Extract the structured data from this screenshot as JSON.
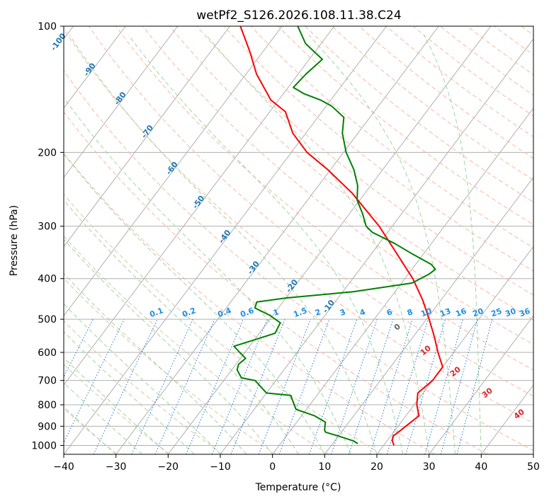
{
  "chart_data": {
    "type": "line",
    "title": "wetPf2_S126.2026.108.11.38.C24",
    "xlabel": "Temperature (°C)",
    "ylabel": "Pressure (hPa)",
    "xlim": [
      -40,
      50
    ],
    "ylim": [
      1050,
      100
    ],
    "y_scale": "log",
    "grid": true,
    "x_ticks": [
      -40,
      -30,
      -20,
      -10,
      0,
      10,
      20,
      30,
      40,
      50
    ],
    "y_ticks": [
      100,
      200,
      300,
      400,
      500,
      600,
      700,
      800,
      900,
      1000
    ],
    "series": [
      {
        "key": "temperature",
        "color": "#ff0000",
        "points": [
          [
            1000,
            22.0
          ],
          [
            975,
            21.0
          ],
          [
            950,
            20.5
          ],
          [
            925,
            21.0
          ],
          [
            900,
            21.5
          ],
          [
            850,
            22.5
          ],
          [
            800,
            20.5
          ],
          [
            750,
            19.0
          ],
          [
            700,
            20.0
          ],
          [
            650,
            20.0
          ],
          [
            600,
            17.0
          ],
          [
            550,
            14.0
          ],
          [
            500,
            10.5
          ],
          [
            450,
            6.5
          ],
          [
            400,
            1.5
          ],
          [
            350,
            -5.0
          ],
          [
            300,
            -12.5
          ],
          [
            250,
            -22.5
          ],
          [
            220,
            -30.5
          ],
          [
            200,
            -37.0
          ],
          [
            180,
            -42.5
          ],
          [
            160,
            -47.0
          ],
          [
            150,
            -51.5
          ],
          [
            130,
            -58.0
          ],
          [
            115,
            -62.5
          ],
          [
            100,
            -68.0
          ]
        ]
      },
      {
        "key": "dewpoint",
        "color": "#008000",
        "points": [
          [
            990,
            14.8
          ],
          [
            975,
            13.5
          ],
          [
            950,
            10.0
          ],
          [
            930,
            7.0
          ],
          [
            920,
            6.5
          ],
          [
            900,
            6.0
          ],
          [
            880,
            5.5
          ],
          [
            850,
            2.5
          ],
          [
            820,
            -2.0
          ],
          [
            800,
            -3.0
          ],
          [
            760,
            -5.0
          ],
          [
            750,
            -10.0
          ],
          [
            700,
            -14.0
          ],
          [
            690,
            -17.0
          ],
          [
            660,
            -19.0
          ],
          [
            640,
            -19.5
          ],
          [
            620,
            -19.0
          ],
          [
            600,
            -21.0
          ],
          [
            580,
            -23.0
          ],
          [
            560,
            -20.0
          ],
          [
            540,
            -17.0
          ],
          [
            510,
            -17.5
          ],
          [
            490,
            -20.5
          ],
          [
            470,
            -24.5
          ],
          [
            455,
            -25.0
          ],
          [
            445,
            -20.0
          ],
          [
            430,
            -8.0
          ],
          [
            410,
            2.0
          ],
          [
            390,
            4.0
          ],
          [
            380,
            4.5
          ],
          [
            370,
            3.0
          ],
          [
            350,
            -2.0
          ],
          [
            330,
            -7.0
          ],
          [
            310,
            -13.0
          ],
          [
            300,
            -15.0
          ],
          [
            280,
            -17.5
          ],
          [
            260,
            -20.5
          ],
          [
            240,
            -22.5
          ],
          [
            220,
            -25.5
          ],
          [
            200,
            -29.5
          ],
          [
            180,
            -33.0
          ],
          [
            165,
            -35.0
          ],
          [
            155,
            -39.0
          ],
          [
            150,
            -42.0
          ],
          [
            145,
            -46.0
          ],
          [
            140,
            -49.0
          ],
          [
            130,
            -48.5
          ],
          [
            120,
            -47.5
          ],
          [
            110,
            -53.0
          ],
          [
            100,
            -57.0
          ]
        ]
      }
    ],
    "isotherm_labels": [
      "-100",
      "-90",
      "-80",
      "-70",
      "-60",
      "-50",
      "-40",
      "-30",
      "-20",
      "-10"
    ],
    "mixing_ratio_labels": [
      "0.1",
      "0.2",
      "0.4",
      "0.6",
      "1",
      "1.5",
      "2",
      "3",
      "4",
      "6",
      "8",
      "10",
      "13",
      "16",
      "20",
      "25",
      "30",
      "36"
    ],
    "theta_labels": [
      "0",
      "10",
      "20",
      "30",
      "40"
    ]
  }
}
